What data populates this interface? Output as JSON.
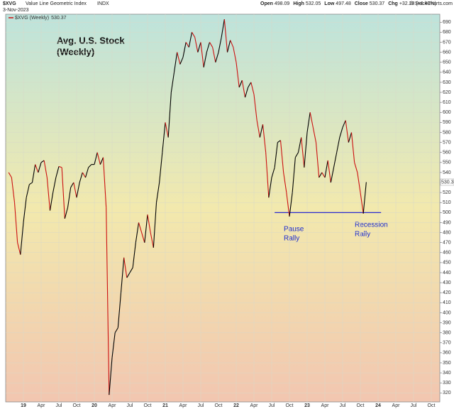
{
  "header": {
    "symbol": "$XVG",
    "name": "Value Line Geometric Index",
    "exchange": "INDX",
    "date": "3-Nov-2023",
    "quote": [
      {
        "label": "Open",
        "value": "498.09"
      },
      {
        "label": "High",
        "value": "532.05"
      },
      {
        "label": "Low",
        "value": "497.48"
      },
      {
        "label": "Close",
        "value": "530.37"
      },
      {
        "label": "Chg",
        "value": "+32.28 (+6.48%)"
      }
    ],
    "copyright": "© StockCharts.com"
  },
  "chart_data": {
    "type": "line",
    "annotations": {
      "title": [
        "Avg. U.S. Stock",
        "(Weekly)"
      ],
      "pause": [
        "Pause",
        "Rally"
      ],
      "recession": [
        "Recession",
        "Rally"
      ]
    },
    "support_line": {
      "value": 500,
      "color": "#2a2ad0"
    },
    "categories": [
      null,
      null,
      null,
      null,
      null,
      "19",
      null,
      null,
      null,
      null,
      null,
      "Apr",
      null,
      null,
      null,
      null,
      null,
      "Jul",
      null,
      null,
      null,
      null,
      null,
      "Oct",
      null,
      null,
      null,
      null,
      null,
      "20",
      null,
      null,
      null,
      null,
      null,
      "Apr",
      null,
      null,
      null,
      null,
      null,
      "Jul",
      null,
      null,
      null,
      null,
      null,
      "Oct",
      null,
      null,
      null,
      null,
      null,
      "21",
      null,
      null,
      null,
      null,
      null,
      "Apr",
      null,
      null,
      null,
      null,
      null,
      "Jul",
      null,
      null,
      null,
      null,
      null,
      "Oct",
      null,
      null,
      null,
      null,
      null,
      "22",
      null,
      null,
      null,
      null,
      null,
      "Apr",
      null,
      null,
      null,
      null,
      null,
      "Jul",
      null,
      null,
      null,
      null,
      null,
      "Oct",
      null,
      null,
      null,
      null,
      null,
      "23",
      null,
      null,
      null,
      null,
      null,
      "Apr",
      null,
      null,
      null,
      null,
      null,
      "Jul",
      null,
      null,
      null,
      null,
      null,
      "Oct",
      null,
      null,
      null,
      null,
      null,
      "24",
      null,
      null,
      null,
      null,
      null,
      "Apr",
      null,
      null,
      null,
      null,
      null,
      "Jul",
      null,
      null,
      null,
      null,
      null,
      "Oct",
      null,
      null
    ],
    "series": [
      {
        "name": "$XVG (Weekly)",
        "up_color": "#000000",
        "down_color": "#cc1010",
        "values": [
          540,
          535,
          510,
          470,
          458,
          490,
          515,
          528,
          530,
          548,
          540,
          550,
          552,
          535,
          502,
          520,
          535,
          546,
          545,
          494,
          505,
          525,
          530,
          515,
          530,
          540,
          535,
          545,
          548,
          548,
          560,
          548,
          555,
          505,
          318,
          355,
          380,
          385,
          420,
          455,
          435,
          440,
          445,
          470,
          490,
          480,
          470,
          498,
          480,
          465,
          510,
          530,
          560,
          590,
          575,
          620,
          640,
          660,
          648,
          655,
          670,
          665,
          680,
          675,
          660,
          670,
          645,
          660,
          670,
          665,
          650,
          660,
          675,
          693,
          660,
          672,
          665,
          650,
          625,
          632,
          615,
          625,
          630,
          618,
          592,
          575,
          588,
          560,
          515,
          535,
          545,
          570,
          572,
          540,
          520,
          496,
          520,
          555,
          560,
          575,
          545,
          580,
          600,
          585,
          570,
          535,
          540,
          535,
          552,
          530,
          545,
          560,
          575,
          585,
          592,
          570,
          580,
          550,
          540,
          520,
          499,
          530.37,
          null,
          null,
          null,
          null,
          null,
          null,
          null,
          null,
          null,
          null,
          null,
          null,
          null,
          null,
          null,
          null,
          null,
          null,
          null,
          null,
          null,
          null,
          null,
          null
        ]
      }
    ],
    "ylim": [
      311,
      698
    ],
    "yticks": [
      320,
      330,
      340,
      350,
      360,
      370,
      380,
      390,
      400,
      410,
      420,
      430,
      440,
      450,
      460,
      470,
      480,
      490,
      500,
      510,
      520,
      530,
      540,
      550,
      560,
      570,
      580,
      590,
      600,
      610,
      620,
      630,
      640,
      650,
      660,
      670,
      680,
      690
    ],
    "grid": true
  }
}
